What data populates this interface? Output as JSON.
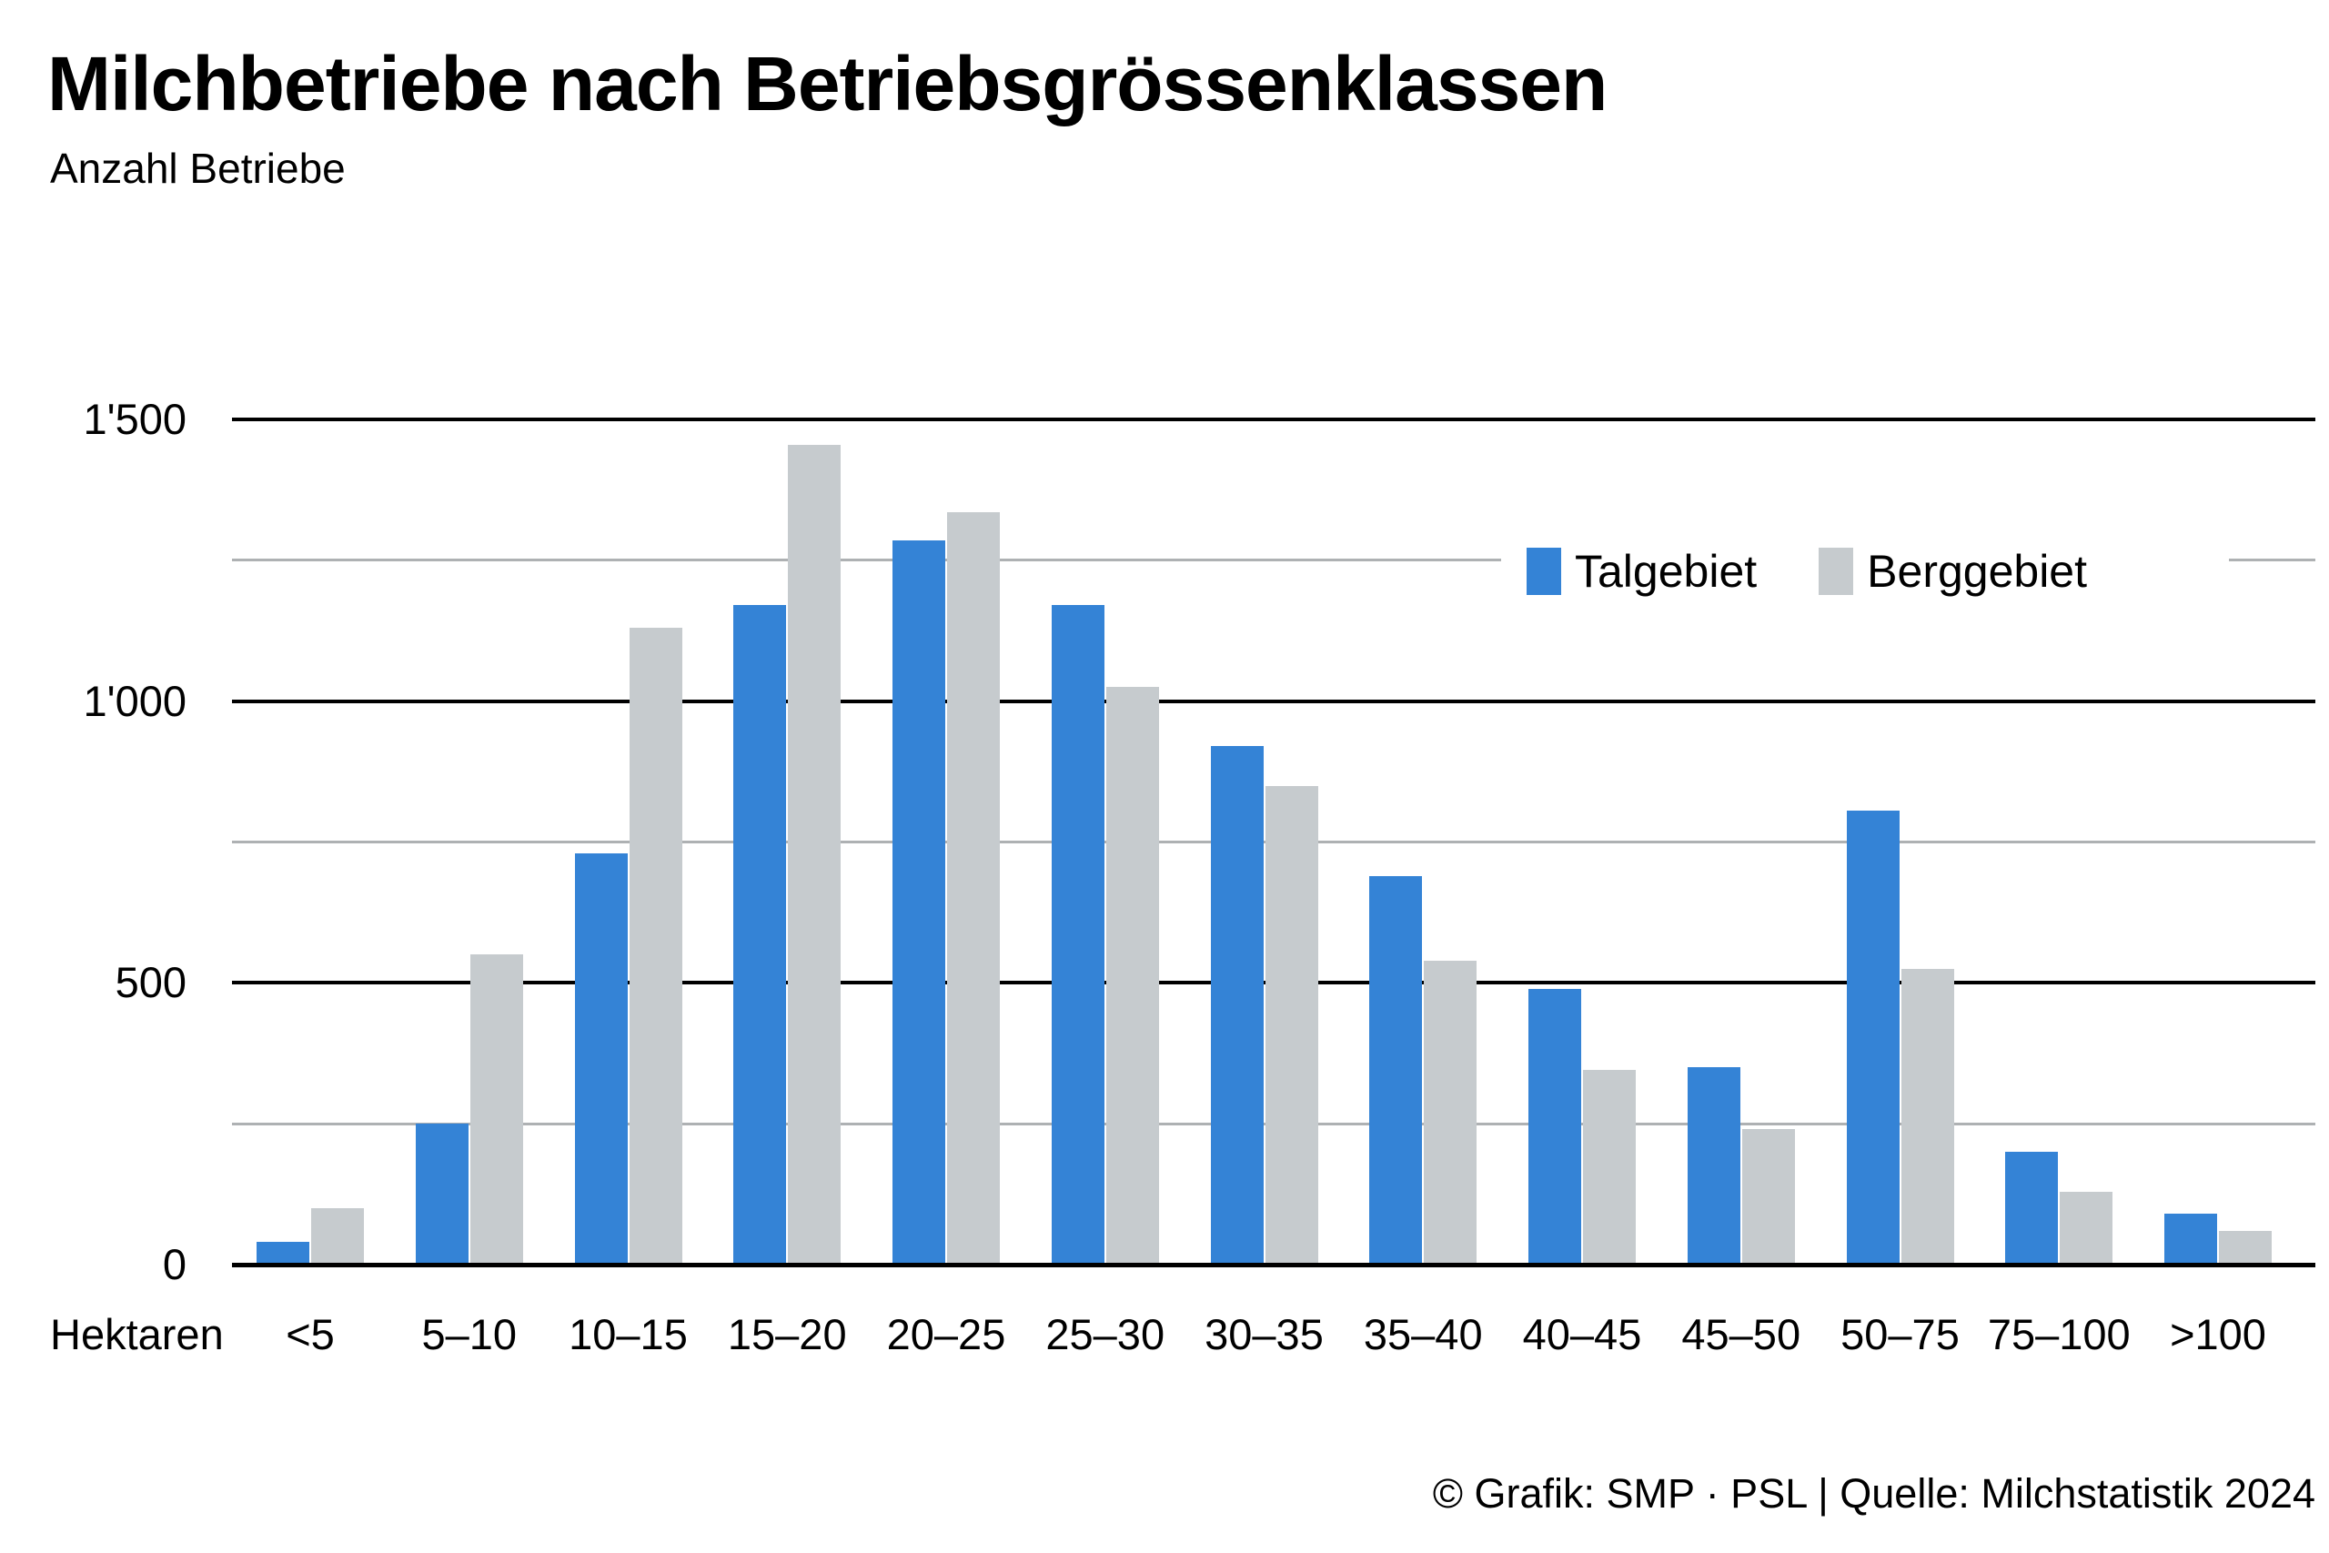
{
  "header": {
    "title": "Milchbetriebe nach Betriebsgrössenklassen",
    "subtitle": "Anzahl Betriebe"
  },
  "footer": {
    "credit": "© Grafik: SMP · PSL | Quelle: Milchstatistik 2024"
  },
  "chart_data": {
    "type": "bar",
    "title": "Milchbetriebe nach Betriebsgrössenklassen",
    "ylabel": "Anzahl Betriebe",
    "xlabel": "Hektaren",
    "categories": [
      "<5",
      "5–10",
      "10–15",
      "15–20",
      "20–25",
      "25–30",
      "30–35",
      "35–40",
      "40–45",
      "45–50",
      "50–75",
      "75–100",
      ">100"
    ],
    "series": [
      {
        "name": "Talgebiet",
        "color": "#3483d6",
        "values": [
          40,
          250,
          730,
          1170,
          1285,
          1170,
          920,
          690,
          490,
          350,
          805,
          200,
          90
        ]
      },
      {
        "name": "Berggebiet",
        "color": "#c6cbce",
        "values": [
          100,
          550,
          1130,
          1455,
          1335,
          1025,
          850,
          540,
          345,
          240,
          525,
          130,
          60
        ]
      }
    ],
    "ylim": [
      0,
      1500
    ],
    "yticks_major": [
      0,
      500,
      1000,
      1500
    ],
    "ytick_labels": [
      "0",
      "500",
      "1'000",
      "1'500"
    ],
    "yticks_minor": [
      250,
      750,
      1250
    ],
    "grid": "horizontal",
    "legend_position": "top-right",
    "colors": {
      "grid_major": "#000000",
      "grid_minor": "#aeb1b3",
      "background": "#ffffff",
      "text": "#000000"
    }
  }
}
